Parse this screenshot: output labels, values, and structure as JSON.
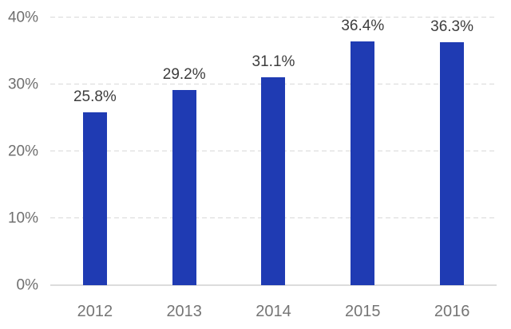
{
  "chart_data": {
    "type": "bar",
    "categories": [
      "2012",
      "2013",
      "2014",
      "2015",
      "2016"
    ],
    "values": [
      25.8,
      29.2,
      31.1,
      36.4,
      36.3
    ],
    "data_labels": [
      "25.8%",
      "29.2%",
      "31.1%",
      "36.4%",
      "36.3%"
    ],
    "y_ticks": [
      {
        "value": 0,
        "label": "0%"
      },
      {
        "value": 10,
        "label": "10%"
      },
      {
        "value": 20,
        "label": "20%"
      },
      {
        "value": 30,
        "label": "30%"
      },
      {
        "value": 40,
        "label": "40%"
      }
    ],
    "ylim": [
      0,
      40
    ],
    "xlabel": "",
    "ylabel": "",
    "grid": "dashed-horizontal",
    "legend": "none",
    "colors": {
      "bar": "#1f3bb3",
      "gridline": "#d9d9d9",
      "baseline": "#dcdcdc",
      "axis_label": "#6f6f6f",
      "data_label": "#3d3d3d",
      "background": "#ffffff"
    }
  }
}
